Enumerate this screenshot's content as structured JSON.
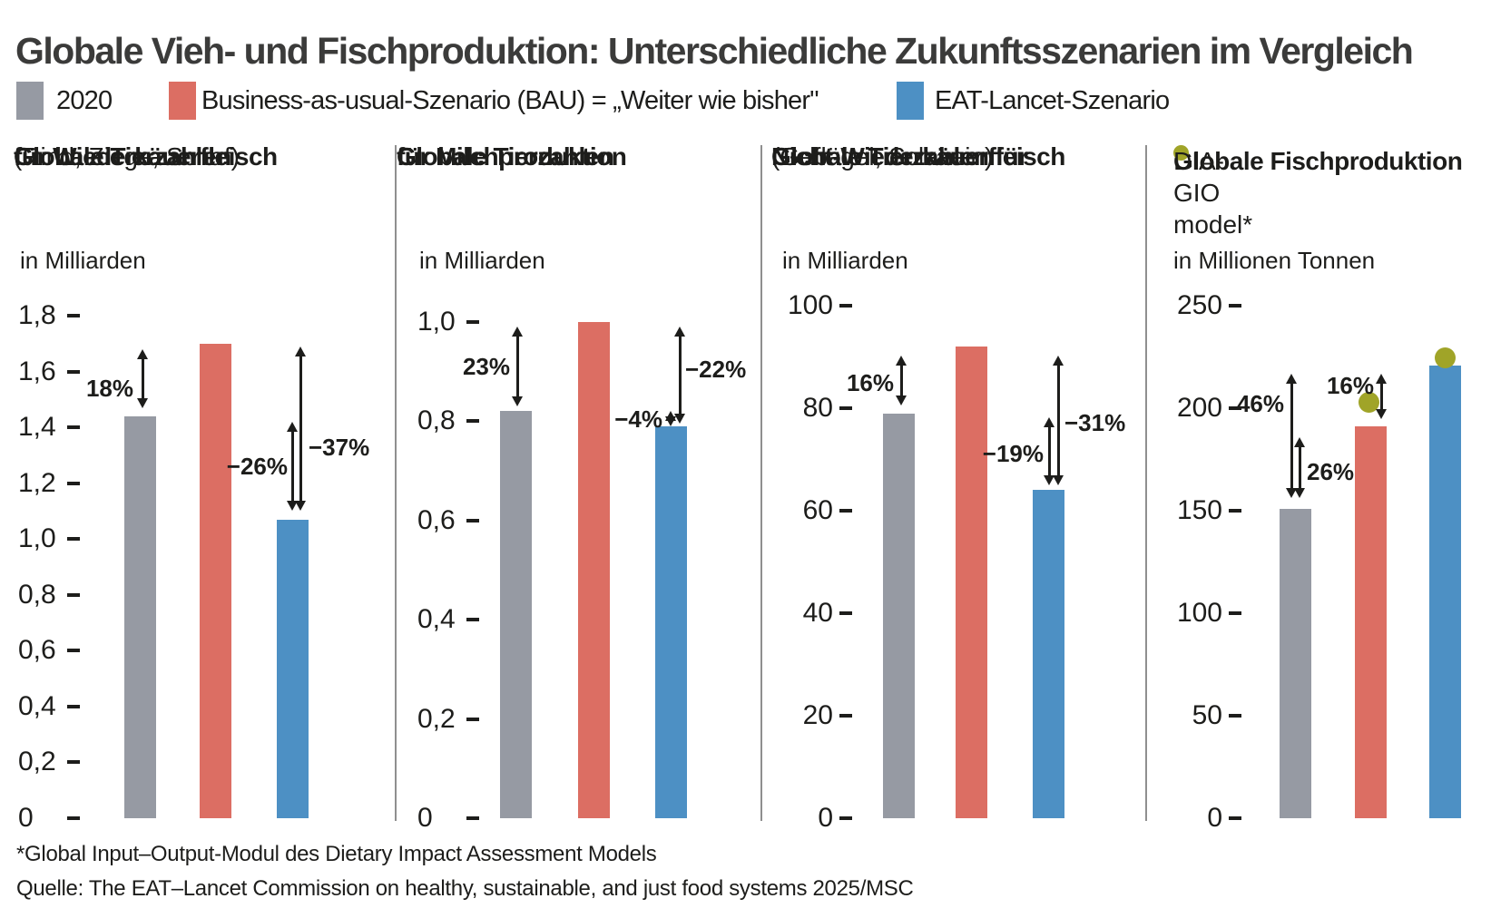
{
  "title": "Globale Vieh- und Fischproduktion: Unterschiedliche Zukunftsszenarien im Vergleich",
  "palette": {
    "gray": "#969aa3",
    "red": "#dc6e63",
    "blue": "#4d90c4",
    "olive": "#a0a428",
    "text": "#1d1d1b"
  },
  "legend": {
    "items": [
      {
        "label": "2020",
        "color": "gray"
      },
      {
        "label": "Business-as-usual-Szenario (BAU) = „Weiter wie bisher\"",
        "color": "red"
      },
      {
        "label": "EAT-Lancet-Szenario",
        "color": "blue"
      }
    ]
  },
  "chart_data": [
    {
      "type": "bar",
      "title_lines": [
        "Globale Tierzahlen",
        "für Wiederkäuerfleisch"
      ],
      "subtitle": "(Rind, Ziege, Schaf)",
      "unit": "in Milliarden",
      "categories": [
        "2020",
        "Business-as-usual-Szenario (BAU)",
        "EAT-Lancet-Szenario"
      ],
      "ylim": [
        0,
        1.8
      ],
      "yticks": [
        {
          "label": "1,8",
          "value": 1.8
        },
        {
          "label": "1,6",
          "value": 1.6
        },
        {
          "label": "1,4",
          "value": 1.4
        },
        {
          "label": "1,2",
          "value": 1.2
        },
        {
          "label": "1,0",
          "value": 1.0
        },
        {
          "label": "0,8",
          "value": 0.8
        },
        {
          "label": "0,6",
          "value": 0.6
        },
        {
          "label": "0,4",
          "value": 0.4
        },
        {
          "label": "0,2",
          "value": 0.2
        },
        {
          "label": "0",
          "value": 0
        }
      ],
      "series": [
        {
          "name": "2020",
          "color": "gray",
          "value": 1.44
        },
        {
          "name": "Business-as-usual-Szenario (BAU)",
          "color": "red",
          "value": 1.7
        },
        {
          "name": "EAT-Lancet-Szenario",
          "color": "blue",
          "value": 1.07
        }
      ],
      "annotations": [
        {
          "label": "18%",
          "from": 1.68,
          "to": 1.47,
          "label_v": 1.54
        },
        {
          "label": "−26%",
          "from": 1.42,
          "to": 1.1,
          "label_v": 1.26
        },
        {
          "label": "−37%",
          "from": 1.69,
          "to": 1.1,
          "label_v": 1.33
        }
      ]
    },
    {
      "type": "bar",
      "title_lines": [
        "Globale Tierzahlen",
        "für Milchproduktion"
      ],
      "unit": "in Milliarden",
      "categories": [
        "2020",
        "Business-as-usual-Szenario (BAU)",
        "EAT-Lancet-Szenario"
      ],
      "ylim": [
        0,
        1.0
      ],
      "yticks": [
        {
          "label": "1,0",
          "value": 1.0
        },
        {
          "label": "0,8",
          "value": 0.8
        },
        {
          "label": "0,6",
          "value": 0.6
        },
        {
          "label": "0,4",
          "value": 0.4
        },
        {
          "label": "0,2",
          "value": 0.2
        },
        {
          "label": "0",
          "value": 0
        }
      ],
      "series": [
        {
          "name": "2020",
          "color": "gray",
          "value": 0.82
        },
        {
          "name": "Business-as-usual-Szenario (BAU)",
          "color": "red",
          "value": 1.0
        },
        {
          "name": "EAT-Lancet-Szenario",
          "color": "blue",
          "value": 0.79
        }
      ],
      "annotations": [
        {
          "label": "23%",
          "from": 0.99,
          "to": 0.83,
          "label_v": 0.91
        },
        {
          "label": "−4%",
          "from": 0.82,
          "to": 0.79,
          "label_v": 0.805
        },
        {
          "label": "−22%",
          "from": 0.99,
          "to": 0.795,
          "label_v": 0.905
        }
      ]
    },
    {
      "type": "bar",
      "title_lines": [
        "Globale Tierzahlen für",
        "Nicht-Wiederkäuerfleisch"
      ],
      "subtitle": "(Geflügel, Schwein)",
      "unit": "in Milliarden",
      "categories": [
        "2020",
        "Business-as-usual-Szenario (BAU)",
        "EAT-Lancet-Szenario"
      ],
      "ylim": [
        0,
        100
      ],
      "yticks": [
        {
          "label": "100",
          "value": 100
        },
        {
          "label": "80",
          "value": 80
        },
        {
          "label": "60",
          "value": 60
        },
        {
          "label": "40",
          "value": 40
        },
        {
          "label": "20",
          "value": 20
        },
        {
          "label": "0",
          "value": 0
        }
      ],
      "series": [
        {
          "name": "2020",
          "color": "gray",
          "value": 79
        },
        {
          "name": "Business-as-usual-Szenario (BAU)",
          "color": "red",
          "value": 92
        },
        {
          "name": "EAT-Lancet-Szenario",
          "color": "blue",
          "value": 64
        }
      ],
      "annotations": [
        {
          "label": "16%",
          "from": 90.3,
          "to": 80.6,
          "label_v": 85.0
        },
        {
          "label": "−19%",
          "from": 78.3,
          "to": 65.0,
          "label_v": 71.2
        },
        {
          "label": "−31%",
          "from": 90.3,
          "to": 65.0,
          "label_v": 77.2
        }
      ]
    },
    {
      "type": "bar",
      "title_lines": [
        "Globale Fischproduktion"
      ],
      "dot_label": "DIA-GIO model*",
      "unit": "in Millionen Tonnen",
      "categories": [
        "2020",
        "Business-as-usual-Szenario (BAU)",
        "EAT-Lancet-Szenario"
      ],
      "ylim": [
        0,
        250
      ],
      "yticks": [
        {
          "label": "250",
          "value": 250
        },
        {
          "label": "200",
          "value": 200
        },
        {
          "label": "150",
          "value": 150
        },
        {
          "label": "100",
          "value": 100
        },
        {
          "label": "50",
          "value": 50
        },
        {
          "label": "0",
          "value": 0
        }
      ],
      "series": [
        {
          "name": "2020",
          "color": "gray",
          "value": 151
        },
        {
          "name": "Business-as-usual-Szenario (BAU)",
          "color": "red",
          "value": 191
        },
        {
          "name": "EAT-Lancet-Szenario",
          "color": "blue",
          "value": 221
        }
      ],
      "dots": [
        {
          "series": "Business-as-usual-Szenario (BAU)",
          "value": 203
        },
        {
          "series": "EAT-Lancet-Szenario",
          "value": 225
        }
      ],
      "annotations": [
        {
          "label": "46%",
          "from": 216.8,
          "to": 156.0,
          "label_v": 202.0
        },
        {
          "label": "26%",
          "from": 185.8,
          "to": 156.0,
          "label_v": 169.0
        },
        {
          "label": "16%",
          "from": 217.0,
          "to": 194.5,
          "label_v": 211.0
        }
      ]
    }
  ],
  "footnote": "*Global Input–Output-Modul des Dietary Impact Assessment Models",
  "source": "Quelle: The EAT–Lancet Commission on healthy, sustainable, and just food systems 2025/MSC"
}
